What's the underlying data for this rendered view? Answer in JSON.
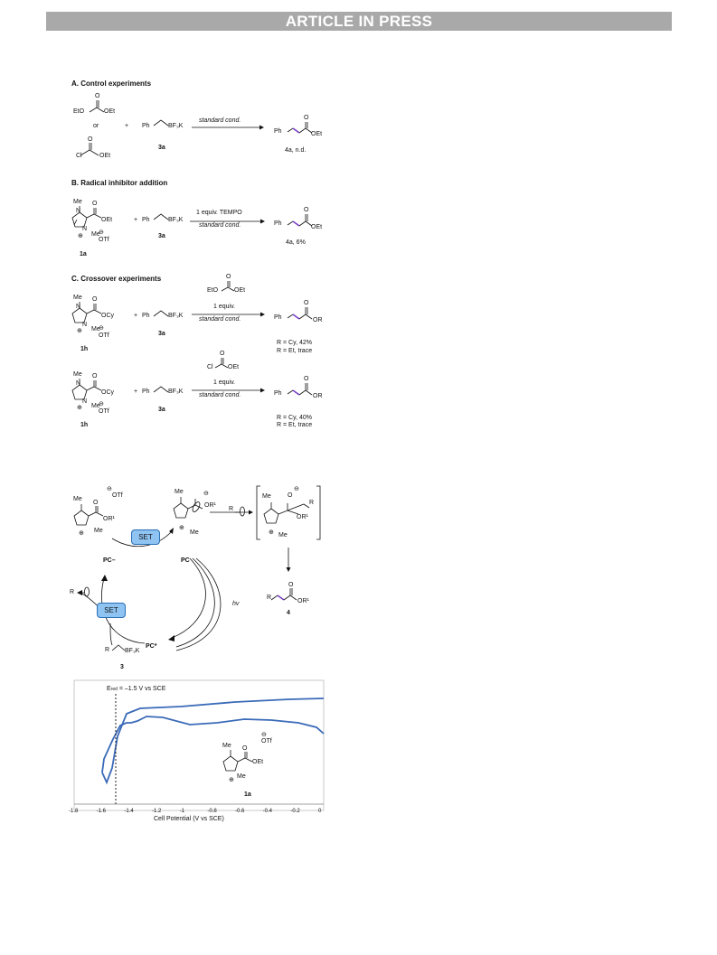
{
  "banner": "ARTICLE IN PRESS",
  "sectionA": {
    "title": "A. Control experiments",
    "reagent1": "EtO",
    "reagent1b": "OEt",
    "or": "or",
    "reagent2a": "Cl",
    "reagent2b": "OEt",
    "plus": "+",
    "ph": "Ph",
    "bf3k": "BF₃K",
    "label3a": "3a",
    "cond": "standard cond.",
    "prod_ph": "Ph",
    "prod_oet": "OEt",
    "prod_o": "O",
    "result": "4a, n.d."
  },
  "sectionB": {
    "title": "B. Radical inhibitor addition",
    "me": "Me",
    "n1": "N",
    "n2": "N",
    "meN": "Me",
    "oet": "OEt",
    "o": "O",
    "otf": "OTf",
    "label1a": "1a",
    "plus": "+",
    "ph": "Ph",
    "bf3k": "BF₃K",
    "label3a": "3a",
    "cond_top": "1 equiv. TEMPO",
    "cond_bot": "standard cond.",
    "prod_ph": "Ph",
    "prod_oet": "OEt",
    "prod_o": "O",
    "result": "4a, 6%"
  },
  "sectionC": {
    "title": "C. Crossover experiments",
    "rows": [
      {
        "ocy": "OCy",
        "o": "O",
        "me": "Me",
        "meN": "Me",
        "otf": "OTf",
        "label": "1h",
        "plus": "+",
        "ph": "Ph",
        "bf3k": "BF₃K",
        "label3a": "3a",
        "reagA": "EtO",
        "reagB": "OEt",
        "reagO": "O",
        "equiv": "1 equiv.",
        "cond": "standard cond.",
        "prod_ph": "Ph",
        "prod_or": "OR",
        "prod_o": "O",
        "res1": "R = Cy, 42%",
        "res2": "R = Et, trace"
      },
      {
        "ocy": "OCy",
        "o": "O",
        "me": "Me",
        "meN": "Me",
        "otf": "OTf",
        "label": "1h",
        "plus": "+",
        "ph": "Ph",
        "bf3k": "BF₃K",
        "label3a": "3a",
        "reagA": "Cl",
        "reagB": "OEt",
        "reagO": "O",
        "equiv": "1 equiv.",
        "cond": "standard cond.",
        "prod_ph": "Ph",
        "prod_or": "OR",
        "prod_o": "O",
        "res1": "R = Cy, 40%",
        "res2": "R = Et, trace"
      }
    ]
  },
  "mechanism": {
    "me": "Me",
    "otf": "OTf",
    "or1": "OR¹",
    "o": "O",
    "meN": "Me",
    "set": "SET",
    "pc_minus": "PC–",
    "pc": "PC",
    "pc_star": "PC*",
    "hv": "hv",
    "r": "R",
    "bf3k": "BF₃K",
    "label3": "3",
    "label4": "4",
    "or1b": "OR¹"
  },
  "cv": {
    "ered": "E",
    "ered_sub": "red",
    "ered_rest": " = –1.5 V vs SCE",
    "xlabel": "Cell Potential (V vs SCE)",
    "ticks": [
      "-1.8",
      "-1.6",
      "-1.4",
      "-1.2",
      "-1",
      "-0.8",
      "-0.6",
      "-0.4",
      "-0.2",
      "0"
    ],
    "label1a": "1a",
    "otf": "OTf",
    "o": "O",
    "oet": "OEt",
    "me": "Me",
    "meN": "Me"
  }
}
